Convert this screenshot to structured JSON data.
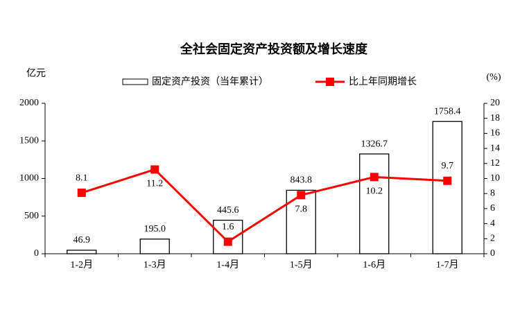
{
  "chart_data": {
    "type": "combo",
    "title": "全社会固定资产投资额及增长速度",
    "y_label": "亿元",
    "y2_label": "(%)",
    "categories": [
      "1-2月",
      "1-3月",
      "1-4月",
      "1-5月",
      "1-6月",
      "1-7月"
    ],
    "series": [
      {
        "name": "固定资产投资（当年累计）",
        "type": "bar",
        "color": "#ffffff",
        "values": [
          46.9,
          195.0,
          445.6,
          843.8,
          1326.7,
          1758.4
        ],
        "value_labels": [
          "46.9",
          "195.0",
          "445.6",
          "843.8",
          "1326.7",
          "1758.4"
        ]
      },
      {
        "name": "比上年同期增长",
        "type": "line",
        "axis": "y2",
        "color": "#ff0000",
        "values": [
          8.1,
          11.2,
          1.6,
          7.8,
          10.2,
          9.7
        ]
      }
    ],
    "ylim": [
      0,
      2000
    ],
    "yticks": [
      0,
      500,
      1000,
      1500,
      2000
    ],
    "y2lim": [
      0,
      20
    ],
    "y2ticks": [
      0,
      2,
      4,
      6,
      8,
      10,
      12,
      14,
      16,
      18,
      20
    ],
    "grid": false
  }
}
